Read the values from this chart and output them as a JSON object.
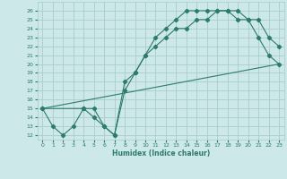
{
  "xlabel": "Humidex (Indice chaleur)",
  "background_color": "#cce8e8",
  "grid_color": "#aacccc",
  "line_color": "#2d7a6e",
  "xlim": [
    -0.5,
    23.5
  ],
  "ylim": [
    11.5,
    27
  ],
  "xticks": [
    0,
    1,
    2,
    3,
    4,
    5,
    6,
    7,
    8,
    9,
    10,
    11,
    12,
    13,
    14,
    15,
    16,
    17,
    18,
    19,
    20,
    21,
    22,
    23
  ],
  "yticks": [
    12,
    13,
    14,
    15,
    16,
    17,
    18,
    19,
    20,
    21,
    22,
    23,
    24,
    25,
    26
  ],
  "series1": [
    [
      0,
      15
    ],
    [
      1,
      13
    ],
    [
      2,
      12
    ],
    [
      3,
      13
    ],
    [
      4,
      15
    ],
    [
      5,
      15
    ],
    [
      6,
      13
    ],
    [
      7,
      12
    ],
    [
      8,
      18
    ],
    [
      9,
      19
    ],
    [
      10,
      21
    ],
    [
      11,
      22
    ],
    [
      12,
      23
    ],
    [
      13,
      24
    ],
    [
      14,
      24
    ],
    [
      15,
      25
    ],
    [
      16,
      25
    ],
    [
      17,
      26
    ],
    [
      18,
      26
    ],
    [
      19,
      26
    ],
    [
      20,
      25
    ],
    [
      21,
      23
    ],
    [
      22,
      21
    ],
    [
      23,
      20
    ]
  ],
  "series2": [
    [
      0,
      15
    ],
    [
      4,
      15
    ],
    [
      5,
      14
    ],
    [
      6,
      13
    ],
    [
      7,
      12
    ],
    [
      8,
      17
    ],
    [
      9,
      19
    ],
    [
      10,
      21
    ],
    [
      11,
      23
    ],
    [
      12,
      24
    ],
    [
      13,
      25
    ],
    [
      14,
      26
    ],
    [
      15,
      26
    ],
    [
      16,
      26
    ],
    [
      17,
      26
    ],
    [
      18,
      26
    ],
    [
      19,
      25
    ],
    [
      20,
      25
    ],
    [
      21,
      25
    ],
    [
      22,
      23
    ],
    [
      23,
      22
    ]
  ],
  "series3": [
    [
      0,
      15
    ],
    [
      23,
      20
    ]
  ]
}
